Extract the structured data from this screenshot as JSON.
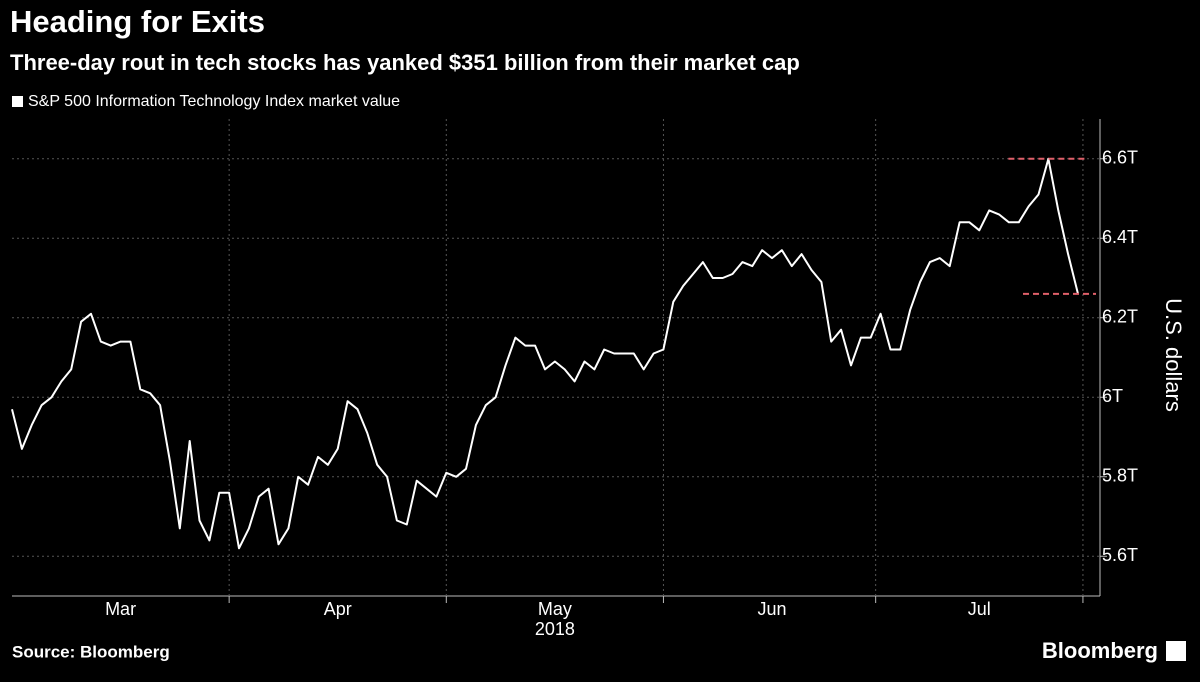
{
  "chart_data": {
    "type": "line",
    "title": "Heading for Exits",
    "subtitle": "Three-day rout in tech stocks has yanked $351 billion from their market cap",
    "y_label": "U.S. dollars",
    "x_label": "2018",
    "source": "Source: Bloomberg",
    "brand": "Bloomberg",
    "categories": [
      null,
      null,
      null,
      null,
      null,
      null,
      null,
      null,
      null,
      null,
      null,
      "Mar",
      null,
      null,
      null,
      null,
      null,
      null,
      null,
      null,
      null,
      null,
      null,
      null,
      null,
      null,
      null,
      null,
      null,
      null,
      null,
      null,
      null,
      "Apr",
      null,
      null,
      null,
      null,
      null,
      null,
      null,
      null,
      null,
      null,
      null,
      null,
      null,
      null,
      null,
      null,
      null,
      null,
      null,
      null,
      null,
      "May",
      null,
      null,
      null,
      null,
      null,
      null,
      null,
      null,
      null,
      null,
      null,
      null,
      null,
      null,
      null,
      null,
      null,
      null,
      null,
      null,
      null,
      "Jun",
      null,
      null,
      null,
      null,
      null,
      null,
      null,
      null,
      null,
      null,
      null,
      null,
      null,
      null,
      null,
      null,
      null,
      null,
      null,
      null,
      "Jul",
      null,
      null,
      null,
      null,
      null,
      null,
      null,
      null,
      null,
      null
    ],
    "series": [
      {
        "name": "S&P 500 Information Technology Index market value",
        "color": "#ffffff",
        "values": [
          5.97,
          5.87,
          5.93,
          5.98,
          6.0,
          6.04,
          6.07,
          6.19,
          6.21,
          6.14,
          6.13,
          6.14,
          6.14,
          6.02,
          6.01,
          5.98,
          5.84,
          5.67,
          5.89,
          5.69,
          5.64,
          5.76,
          5.76,
          5.62,
          5.67,
          5.75,
          5.77,
          5.63,
          5.67,
          5.8,
          5.78,
          5.85,
          5.83,
          5.87,
          5.99,
          5.97,
          5.91,
          5.83,
          5.8,
          5.69,
          5.68,
          5.79,
          5.77,
          5.75,
          5.81,
          5.8,
          5.82,
          5.93,
          5.98,
          6.0,
          6.08,
          6.15,
          6.13,
          6.13,
          6.07,
          6.09,
          6.07,
          6.04,
          6.09,
          6.07,
          6.12,
          6.11,
          6.11,
          6.11,
          6.07,
          6.11,
          6.12,
          6.24,
          6.28,
          6.31,
          6.34,
          6.3,
          6.3,
          6.31,
          6.34,
          6.33,
          6.37,
          6.35,
          6.37,
          6.33,
          6.36,
          6.32,
          6.29,
          6.14,
          6.17,
          6.08,
          6.15,
          6.15,
          6.21,
          6.12,
          6.12,
          6.22,
          6.29,
          6.34,
          6.35,
          6.33,
          6.44,
          6.44,
          6.42,
          6.47,
          6.46,
          6.44,
          6.44,
          6.48,
          6.51,
          6.6,
          6.47,
          6.36,
          6.26
        ]
      }
    ],
    "ylim": [
      5.5,
      6.7
    ],
    "yticks": [
      {
        "value": 5.6,
        "label": "5.6T"
      },
      {
        "value": 5.8,
        "label": "5.8T"
      },
      {
        "value": 6,
        "label": "6T"
      },
      {
        "value": 6.2,
        "label": "6.2T"
      },
      {
        "value": 6.4,
        "label": "6.4T"
      },
      {
        "value": 6.6,
        "label": "6.6T"
      }
    ],
    "grid": true,
    "annotation_color": "#e0606a"
  }
}
